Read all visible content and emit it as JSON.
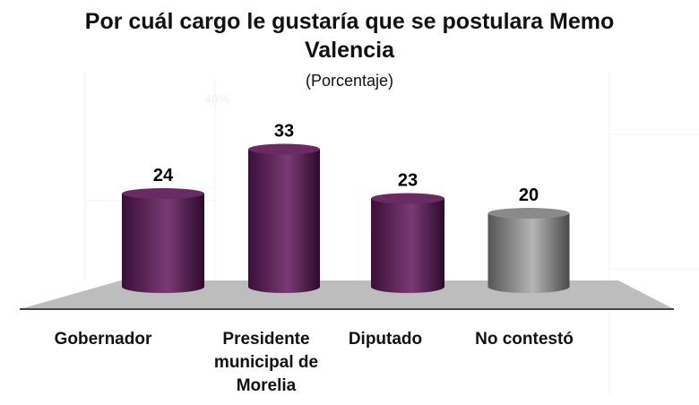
{
  "chart_data": {
    "type": "bar",
    "title": "Por cuál cargo le gustaría que se postulara Memo Valencia",
    "subtitle": "(Porcentaje)",
    "watermark": "46%",
    "categories": [
      "Gobernador",
      "Presidente municipal de Morelia",
      "Diputado",
      "No contestó"
    ],
    "values": [
      24,
      33,
      23,
      20
    ],
    "colors": [
      "#5a1a55",
      "#5a1a55",
      "#5a1a55",
      "#7a7a7a"
    ],
    "xlabel": "",
    "ylabel": "",
    "ylim": [
      0,
      40
    ]
  }
}
